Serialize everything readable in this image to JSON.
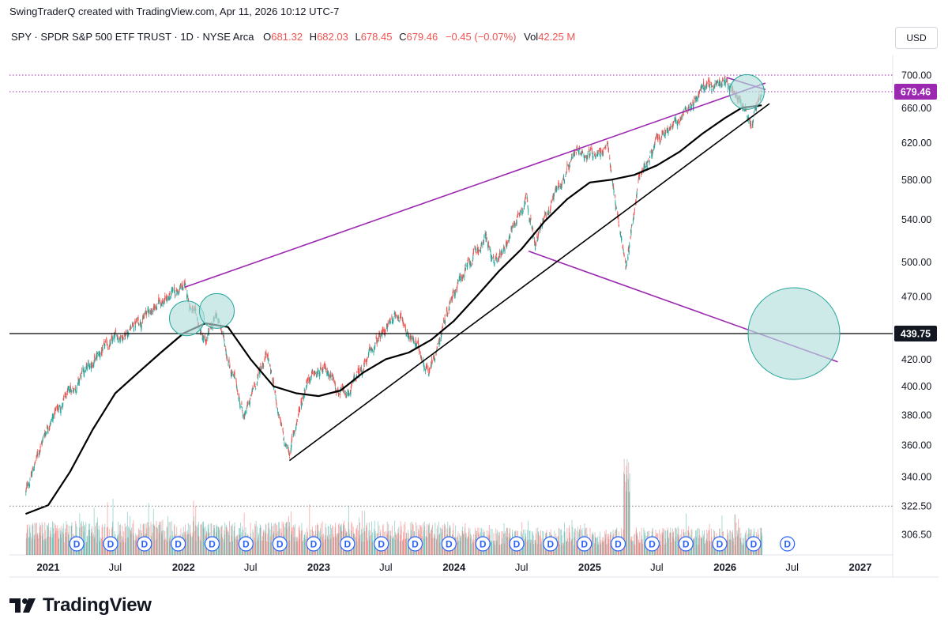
{
  "header": {
    "attribution": "SwingTraderQ created with TradingView.com, Apr 11, 2026 10:12 UTC-7",
    "symbol_line": "SPY · SPDR S&P 500 ETF TRUST · 1D · NYSE Arca",
    "ohlc": {
      "o_label": "O",
      "o_value": "681.32",
      "h_label": "H",
      "h_value": "682.03",
      "l_label": "L",
      "l_value": "678.45",
      "c_label": "C",
      "c_value": "679.46",
      "change": "−0.45 (−0.07%)",
      "vol_label": "Vol",
      "vol_value": "42.25 M"
    },
    "currency_button": "USD"
  },
  "footer": {
    "logo_text": "TradingView"
  },
  "colors": {
    "up": "#26a69a",
    "down": "#ef5350",
    "price_label_bg": "#9c27b0",
    "channel_line": "#9c27b0",
    "trend_line": "#000000",
    "circle_fill": "#b2dfdb",
    "circle_stroke": "#26a69a"
  },
  "chart_data": {
    "type": "line",
    "scale": "log",
    "title": "SPY · SPDR S&P 500 ETF TRUST · 1D · NYSE Arca",
    "x_ticks": [
      "2021",
      "Jul",
      "2022",
      "Jul",
      "2023",
      "Jul",
      "2024",
      "Jul",
      "2025",
      "Jul",
      "2026",
      "Jul",
      "2027"
    ],
    "y_ticks": [
      306.5,
      322.5,
      340.0,
      360.0,
      380.0,
      400.0,
      420.0,
      439.75,
      470.0,
      500.0,
      540.0,
      580.0,
      620.0,
      660.0,
      679.46,
      700.0
    ],
    "y_tick_labels": [
      "306.50",
      "322.50",
      "340.00",
      "360.00",
      "380.00",
      "400.00",
      "420.00",
      "470.00",
      "500.00",
      "540.00",
      "580.00",
      "620.00",
      "660.00",
      "700.00"
    ],
    "price_label": "679.46",
    "horizontal_level_label": "439.75",
    "series": [
      {
        "type": "price",
        "x": [
          "2020-11-01",
          "2021-01-01",
          "2021-03-01",
          "2021-05-01",
          "2021-07-01",
          "2021-09-01",
          "2021-11-01",
          "2022-01-03",
          "2022-03-01",
          "2022-04-01",
          "2022-06-15",
          "2022-08-15",
          "2022-09-30",
          "2022-10-14",
          "2022-12-01",
          "2023-02-01",
          "2023-03-15",
          "2023-05-01",
          "2023-07-31",
          "2023-10-27",
          "2023-12-29",
          "2024-03-28",
          "2024-04-19",
          "2024-07-16",
          "2024-08-05",
          "2024-10-01",
          "2024-12-06",
          "2025-02-19",
          "2025-04-08",
          "2025-05-15",
          "2025-07-01",
          "2025-09-01",
          "2025-11-01",
          "2026-01-01",
          "2026-02-15",
          "2026-03-15",
          "2026-04-10"
        ],
        "y": [
          330,
          375,
          395,
          418,
          435,
          450,
          466,
          478,
          430,
          455,
          378,
          428,
          360,
          355,
          407,
          410,
          390,
          415,
          458,
          412,
          475,
          523,
          495,
          565,
          515,
          570,
          608,
          612,
          495,
          585,
          620,
          645,
          685,
          690,
          675,
          640,
          679.46
        ]
      },
      {
        "type": "moving_average",
        "x": [
          "2020-11-01",
          "2021-01-01",
          "2021-03-01",
          "2021-05-01",
          "2021-07-01",
          "2021-09-01",
          "2021-11-01",
          "2022-01-01",
          "2022-03-01",
          "2022-05-01",
          "2022-07-01",
          "2022-09-01",
          "2022-11-01",
          "2023-01-01",
          "2023-03-01",
          "2023-05-01",
          "2023-07-01",
          "2023-09-01",
          "2023-11-01",
          "2024-01-01",
          "2024-03-01",
          "2024-05-01",
          "2024-07-01",
          "2024-09-01",
          "2024-11-01",
          "2025-01-01",
          "2025-03-01",
          "2025-05-01",
          "2025-07-01",
          "2025-09-01",
          "2025-11-01",
          "2026-01-01",
          "2026-02-15",
          "2026-04-10"
        ],
        "y": [
          318,
          323,
          343,
          370,
          395,
          410,
          425,
          440,
          448,
          445,
          420,
          400,
          395,
          393,
          397,
          410,
          420,
          425,
          435,
          450,
          470,
          492,
          512,
          538,
          560,
          577,
          580,
          585,
          595,
          610,
          630,
          648,
          660,
          663
        ]
      }
    ],
    "volume": "relative daily volume bars at chart bottom (spike around Apr 2025)",
    "drawings": [
      {
        "type": "channel_line",
        "color": "purple",
        "from": [
          "2022-01-04",
          478
        ],
        "to": [
          "2026-04-20",
          690
        ]
      },
      {
        "type": "channel_line",
        "color": "purple",
        "from": [
          "2026-01-05",
          697
        ],
        "to": [
          "2026-04-20",
          682
        ]
      },
      {
        "type": "channel_line",
        "color": "purple",
        "from": [
          "2024-07-20",
          510
        ],
        "to": [
          "2026-11-01",
          418
        ]
      },
      {
        "type": "trend_line",
        "color": "black",
        "from": [
          "2022-10-14",
          350
        ],
        "to": [
          "2026-05-01",
          665
        ]
      },
      {
        "type": "horizontal_line",
        "color": "black",
        "y": 439.75
      },
      {
        "type": "dotted_level",
        "y": 700
      },
      {
        "type": "dotted_level",
        "y": 679.46
      },
      {
        "type": "dotted_level",
        "y": 322.5
      }
    ],
    "dividend_markers": 22,
    "dividend_marker_label": "D"
  }
}
